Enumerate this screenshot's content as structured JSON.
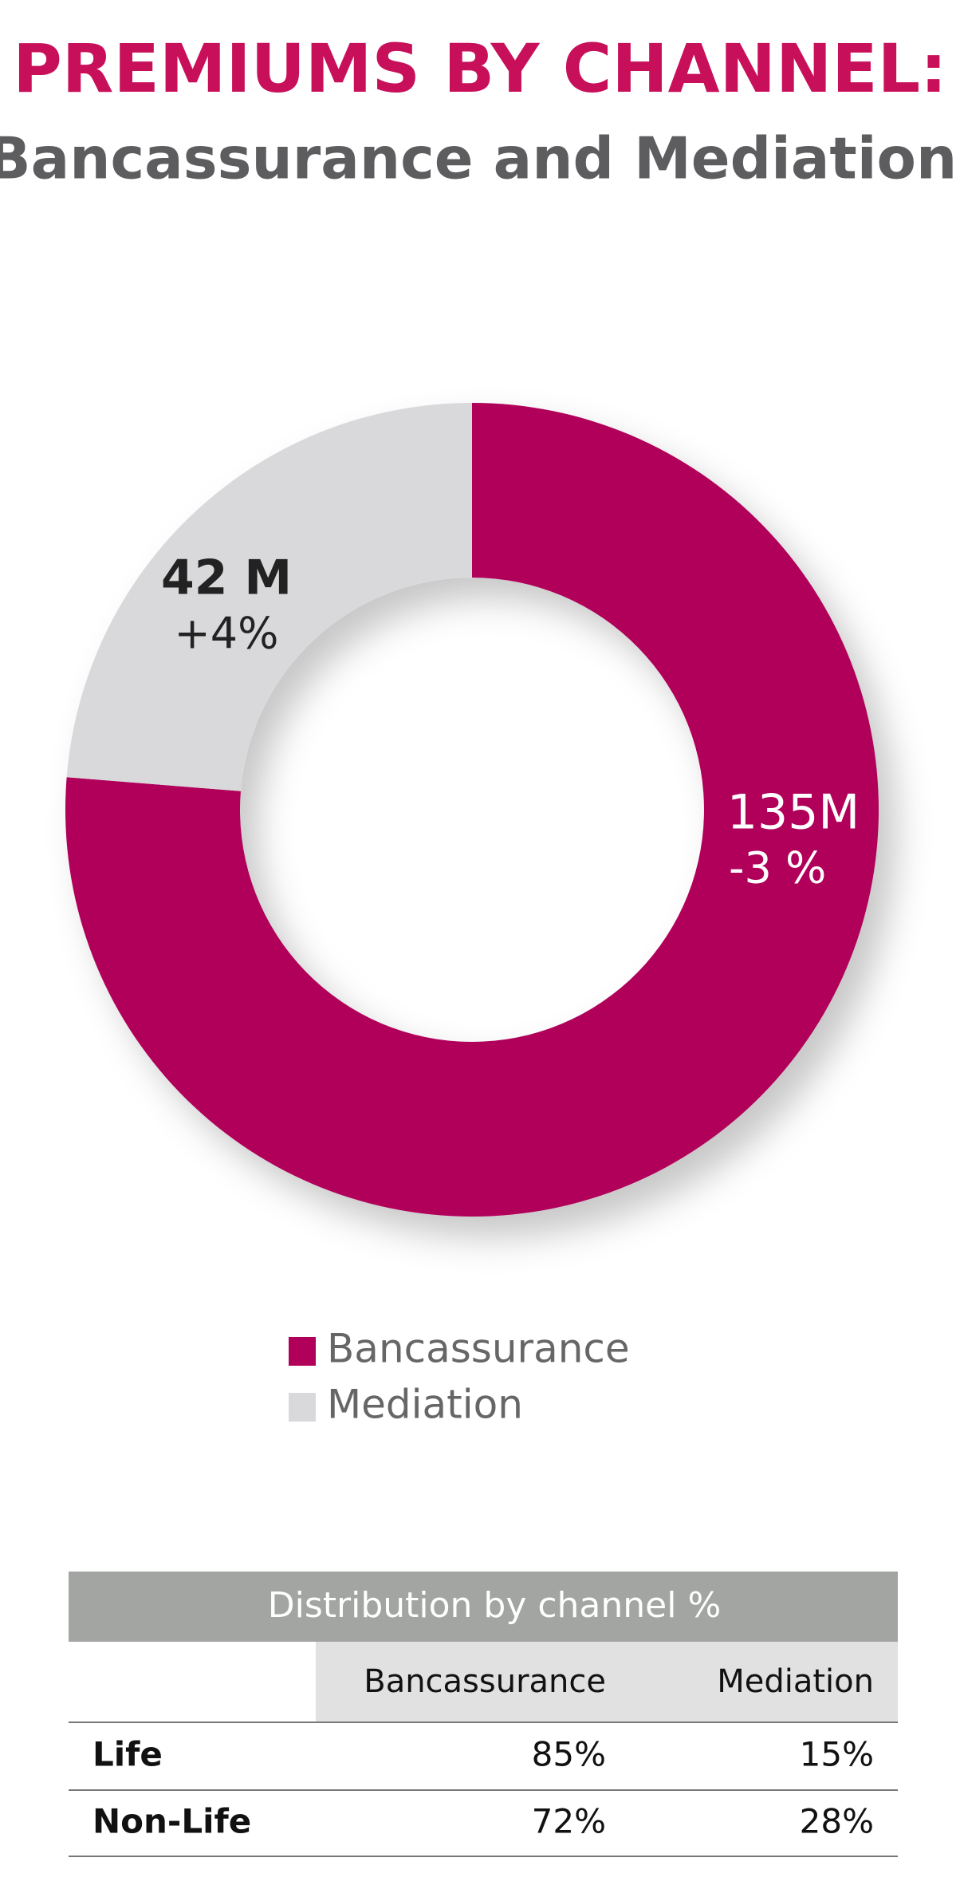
{
  "chart_data": {
    "type": "donut",
    "title": "PREMIUMS BY CHANNEL:",
    "subtitle": "Bancassurance and Mediation",
    "categories": [
      "Bancassurance",
      "Mediation"
    ],
    "values": [
      135,
      42
    ],
    "value_labels": [
      "135M",
      "42 M"
    ],
    "change_labels": [
      "-3 %",
      "+4%"
    ],
    "colors": [
      "#b0005a",
      "#d9d9db"
    ]
  },
  "table": {
    "title": "Distribution by channel %",
    "columns": [
      "Bancassurance",
      "Mediation"
    ],
    "rows": [
      {
        "label": "Life",
        "values": [
          "85%",
          "15%"
        ]
      },
      {
        "label": "Non-Life",
        "values": [
          "72%",
          "28%"
        ]
      }
    ]
  }
}
